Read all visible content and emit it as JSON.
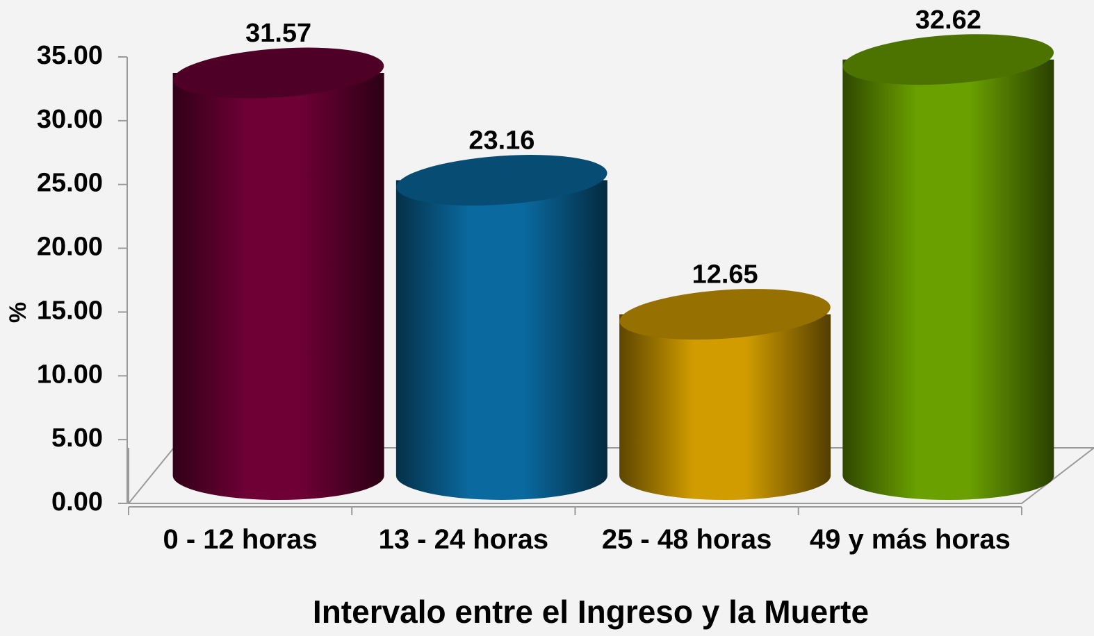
{
  "chart_data": {
    "type": "bar",
    "title": "Intervalo entre el Ingreso y la Muerte",
    "y_label": "%",
    "categories": [
      "0 - 12 horas",
      "13 - 24 horas",
      "25 - 48 horas",
      "49 y más horas"
    ],
    "values": [
      31.57,
      23.16,
      12.65,
      32.62
    ],
    "colors": [
      "#6e0035",
      "#0a6aa0",
      "#d09c00",
      "#6aa000"
    ],
    "ylim": [
      0,
      35
    ],
    "yticks": [
      {
        "value": 0,
        "label": "0.00"
      },
      {
        "value": 5,
        "label": "5.00"
      },
      {
        "value": 10,
        "label": "10.00"
      },
      {
        "value": 15,
        "label": "15.00"
      },
      {
        "value": 20,
        "label": "20.00"
      },
      {
        "value": 25,
        "label": "25.00"
      },
      {
        "value": 30,
        "label": "30.00"
      },
      {
        "value": 35,
        "label": "35.00"
      }
    ]
  }
}
